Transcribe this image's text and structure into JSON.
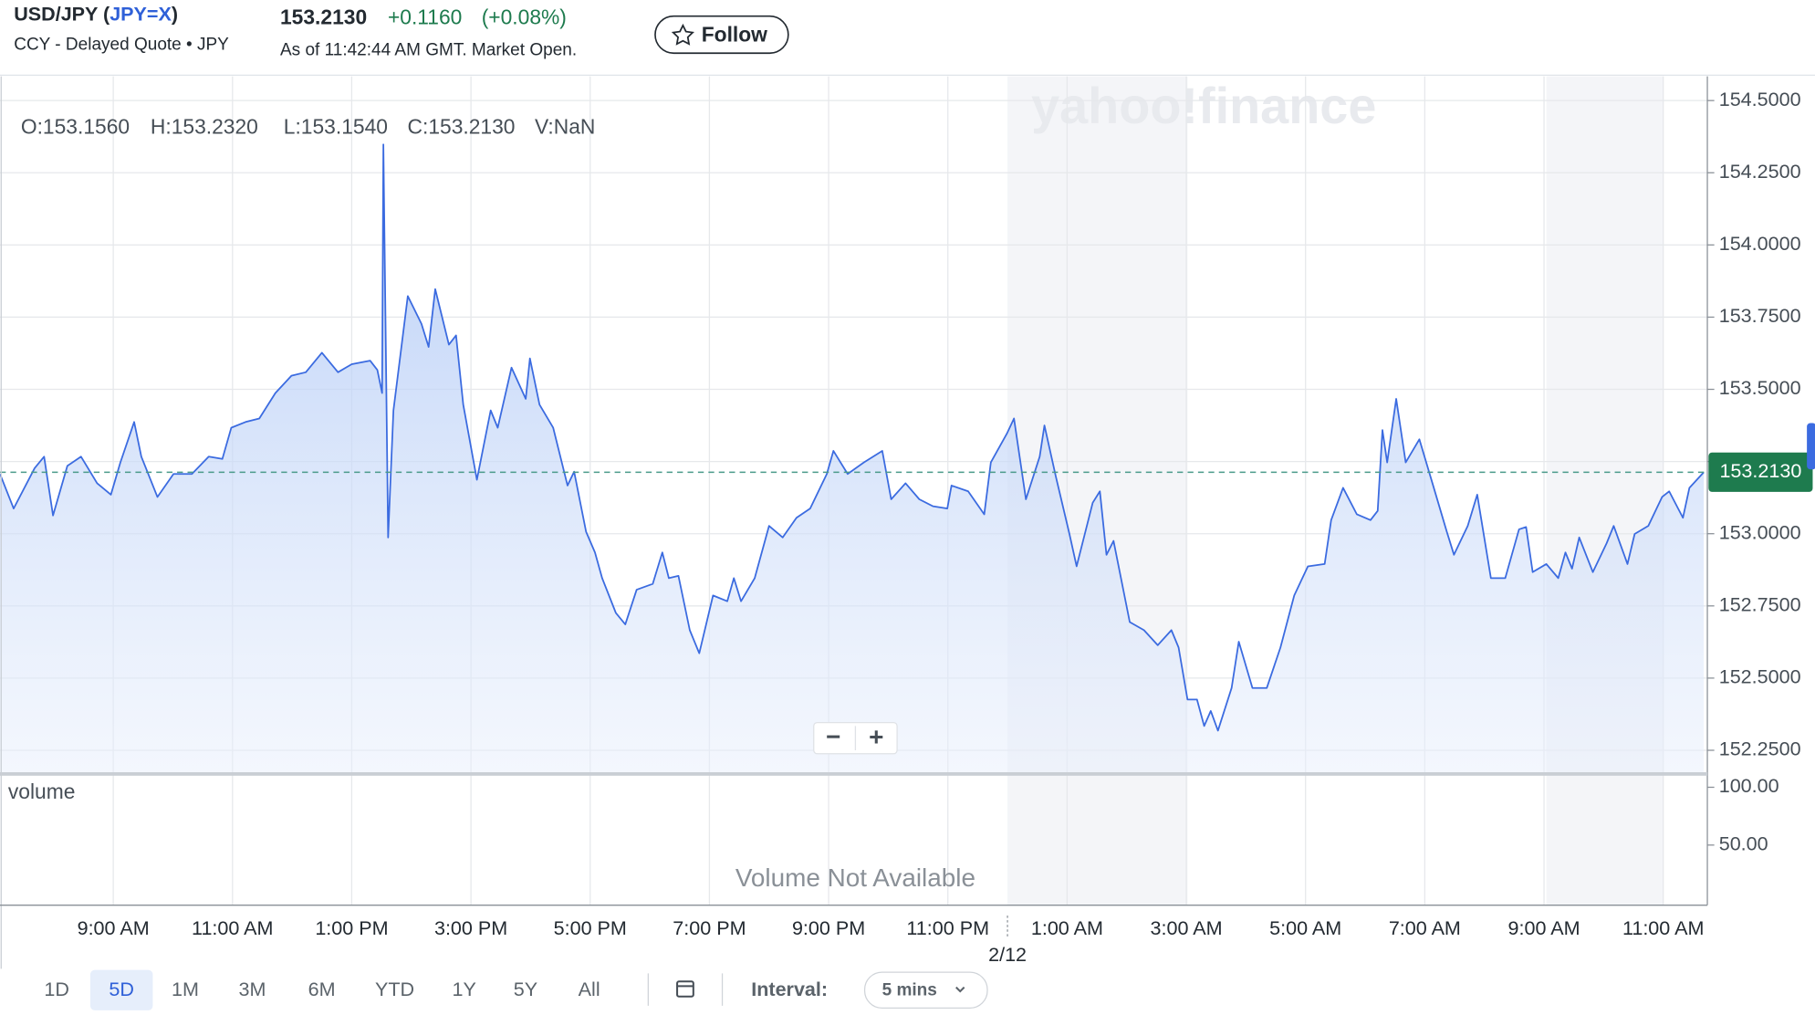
{
  "header": {
    "title_parts": [
      "USD/JPY (",
      "JPY=X",
      ")"
    ],
    "subtitle": "CCY - Delayed Quote • JPY",
    "price": "153.2130",
    "change": "+0.1160",
    "change_pct": "(+0.08%)",
    "as_of": "As of 11:42:44 AM GMT. Market Open.",
    "follow": "Follow"
  },
  "chart_data": {
    "type": "line",
    "watermark": "yahoo!finance",
    "ohlc_legend": [
      "O:153.1560",
      "H:153.2320",
      "L:153.1540",
      "C:153.2130",
      "V:NaN"
    ],
    "line_color": "#3b6be0",
    "x": [
      7.1,
      7.33,
      7.68,
      7.84,
      7.99,
      8.23,
      8.46,
      8.73,
      8.96,
      9.12,
      9.35,
      9.47,
      9.74,
      10.01,
      10.32,
      10.6,
      10.83,
      10.98,
      11.22,
      11.45,
      11.72,
      11.99,
      12.23,
      12.5,
      12.77,
      13.0,
      13.31,
      13.43,
      13.51,
      13.53,
      13.61,
      13.7,
      13.94,
      14.17,
      14.29,
      14.4,
      14.63,
      14.75,
      14.87,
      15.1,
      15.33,
      15.45,
      15.68,
      15.92,
      15.99,
      16.15,
      16.38,
      16.62,
      16.73,
      16.93,
      17.08,
      17.2,
      17.43,
      17.59,
      17.78,
      18.05,
      18.21,
      18.32,
      18.48,
      18.67,
      18.83,
      19.06,
      19.3,
      19.41,
      19.53,
      19.76,
      20.0,
      20.23,
      20.46,
      20.69,
      20.97,
      21.08,
      21.32,
      21.59,
      21.9,
      22.05,
      22.29,
      22.52,
      22.75,
      22.99,
      23.06,
      23.34,
      23.61,
      23.72,
      23.99,
      24.11,
      24.31,
      24.54,
      24.62,
      24.81,
      25.04,
      25.16,
      25.43,
      25.55,
      25.66,
      25.78,
      26.05,
      26.29,
      26.52,
      26.75,
      26.87,
      27.02,
      27.18,
      27.3,
      27.41,
      27.53,
      27.76,
      27.88,
      28.11,
      28.35,
      28.58,
      28.81,
      29.04,
      29.32,
      29.43,
      29.63,
      29.86,
      30.09,
      30.21,
      30.29,
      30.37,
      30.52,
      30.68,
      30.91,
      31.14,
      31.37,
      31.49,
      31.72,
      31.88,
      32.11,
      32.35,
      32.58,
      32.7,
      32.81,
      33.04,
      33.24,
      33.36,
      33.47,
      33.59,
      33.82,
      34.05,
      34.17,
      34.4,
      34.52,
      34.75,
      34.98,
      35.1,
      35.33,
      35.44,
      35.68
    ],
    "values": [
      153.207,
      153.087,
      153.227,
      153.267,
      153.063,
      153.235,
      153.267,
      153.175,
      153.135,
      153.247,
      153.387,
      153.267,
      153.127,
      153.207,
      153.207,
      153.267,
      153.259,
      153.367,
      153.387,
      153.399,
      153.487,
      153.547,
      153.559,
      153.627,
      153.559,
      153.587,
      153.599,
      153.567,
      153.487,
      154.348,
      152.987,
      153.427,
      153.823,
      153.727,
      153.647,
      153.847,
      153.655,
      153.687,
      153.447,
      153.187,
      153.427,
      153.367,
      153.575,
      153.467,
      153.607,
      153.447,
      153.367,
      153.167,
      153.215,
      153.007,
      152.935,
      152.846,
      152.726,
      152.686,
      152.806,
      152.826,
      152.935,
      152.846,
      152.854,
      152.666,
      152.586,
      152.786,
      152.766,
      152.846,
      152.766,
      152.846,
      153.027,
      152.987,
      153.055,
      153.087,
      153.207,
      153.287,
      153.207,
      153.247,
      153.287,
      153.119,
      153.175,
      153.119,
      153.095,
      153.087,
      153.167,
      153.147,
      153.067,
      153.247,
      153.347,
      153.399,
      153.119,
      153.267,
      153.375,
      153.199,
      152.999,
      152.887,
      153.107,
      153.147,
      152.927,
      152.975,
      152.694,
      152.666,
      152.614,
      152.666,
      152.606,
      152.426,
      152.426,
      152.334,
      152.386,
      152.318,
      152.466,
      152.626,
      152.466,
      152.466,
      152.606,
      152.786,
      152.887,
      152.895,
      153.047,
      153.159,
      153.067,
      153.047,
      153.079,
      153.359,
      153.247,
      153.467,
      153.247,
      153.327,
      153.167,
      153.007,
      152.927,
      153.027,
      153.135,
      152.846,
      152.846,
      153.015,
      153.023,
      152.867,
      152.895,
      152.846,
      152.935,
      152.879,
      152.987,
      152.867,
      152.967,
      153.027,
      152.895,
      152.999,
      153.027,
      153.127,
      153.147,
      153.055,
      153.159,
      153.213
    ],
    "xlim": [
      7.1,
      35.74
    ],
    "xticks": [
      {
        "value": 9,
        "label": "9:00 AM"
      },
      {
        "value": 11,
        "label": "11:00 AM"
      },
      {
        "value": 13,
        "label": "1:00 PM"
      },
      {
        "value": 15,
        "label": "3:00 PM"
      },
      {
        "value": 17,
        "label": "5:00 PM"
      },
      {
        "value": 19,
        "label": "7:00 PM"
      },
      {
        "value": 21,
        "label": "9:00 PM"
      },
      {
        "value": 23,
        "label": "11:00 PM"
      },
      {
        "value": 25,
        "label": "1:00 AM"
      },
      {
        "value": 27,
        "label": "3:00 AM"
      },
      {
        "value": 29,
        "label": "5:00 AM"
      },
      {
        "value": 31,
        "label": "7:00 AM"
      },
      {
        "value": 33,
        "label": "9:00 AM"
      },
      {
        "value": 35,
        "label": "11:00 AM"
      }
    ],
    "day_marker": {
      "value": 24,
      "label": "2/12"
    },
    "shaded_ranges": [
      [
        24,
        27.02
      ],
      [
        33.04,
        35
      ]
    ],
    "ylim": [
      152.174,
      154.584
    ],
    "yticks": [
      {
        "value": 154.5,
        "label": "154.5000"
      },
      {
        "value": 154.25,
        "label": "154.2500"
      },
      {
        "value": 154,
        "label": "154.0000"
      },
      {
        "value": 153.75,
        "label": "153.7500"
      },
      {
        "value": 153.5,
        "label": "153.5000"
      },
      {
        "value": 153.25,
        "label": "153.2500"
      },
      {
        "value": 153,
        "label": "153.0000"
      },
      {
        "value": 152.75,
        "label": "152.7500"
      },
      {
        "value": 152.5,
        "label": "152.5000"
      },
      {
        "value": 152.25,
        "label": "152.2500"
      }
    ],
    "grid": true,
    "price_line": {
      "value": 153.213,
      "label": "153.2130",
      "color": "#1e7b4e"
    },
    "zoom": [
      "−",
      "+"
    ],
    "volume_label": "volume",
    "volume_ylim": [
      -2,
      111
    ],
    "volume_yticks": [
      {
        "value": 100,
        "label": "100.00"
      },
      {
        "value": 50,
        "label": "50.00"
      }
    ],
    "volume_message": "Volume Not Available"
  },
  "controls": {
    "ranges": [
      "1D",
      "5D",
      "1M",
      "3M",
      "6M",
      "YTD",
      "1Y",
      "5Y",
      "All"
    ],
    "selected": 1,
    "interval_label": "Interval:",
    "interval": "5 mins"
  }
}
